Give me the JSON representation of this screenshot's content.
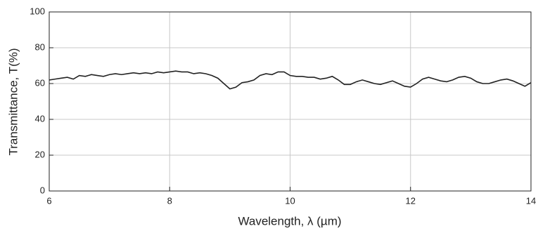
{
  "chart_data": {
    "type": "line",
    "xlabel": "Wavelength, λ (µm)",
    "ylabel": "Transmittance, T(%)",
    "xlim": [
      6,
      14
    ],
    "ylim": [
      0,
      100
    ],
    "xticks": [
      6,
      8,
      10,
      12,
      14
    ],
    "yticks": [
      0,
      20,
      40,
      60,
      80,
      100
    ],
    "grid": true,
    "x": [
      6.0,
      6.1,
      6.2,
      6.3,
      6.4,
      6.5,
      6.6,
      6.7,
      6.8,
      6.9,
      7.0,
      7.1,
      7.2,
      7.3,
      7.4,
      7.5,
      7.6,
      7.7,
      7.8,
      7.9,
      8.0,
      8.1,
      8.2,
      8.3,
      8.4,
      8.5,
      8.6,
      8.7,
      8.8,
      8.9,
      9.0,
      9.1,
      9.2,
      9.3,
      9.4,
      9.5,
      9.6,
      9.7,
      9.8,
      9.9,
      10.0,
      10.1,
      10.2,
      10.3,
      10.4,
      10.5,
      10.6,
      10.7,
      10.8,
      10.9,
      11.0,
      11.1,
      11.2,
      11.3,
      11.4,
      11.5,
      11.6,
      11.7,
      11.8,
      11.9,
      12.0,
      12.1,
      12.2,
      12.3,
      12.4,
      12.5,
      12.6,
      12.7,
      12.8,
      12.9,
      13.0,
      13.1,
      13.2,
      13.3,
      13.4,
      13.5,
      13.6,
      13.7,
      13.8,
      13.9,
      14.0
    ],
    "series": [
      {
        "color": "#222222",
        "values": [
          62,
          62.5,
          63,
          63.5,
          62.5,
          64.5,
          64,
          65,
          64.5,
          64,
          65,
          65.5,
          65,
          65.5,
          66,
          65.5,
          66,
          65.5,
          66.5,
          66,
          66.5,
          67,
          66.5,
          66.5,
          65.5,
          66,
          65.5,
          64.5,
          63,
          60,
          57,
          58,
          60.5,
          61,
          62,
          64.5,
          65.5,
          65,
          66.5,
          66.5,
          64.5,
          64,
          64,
          63.5,
          63.5,
          62.5,
          63,
          64,
          62,
          59.5,
          59.5,
          61,
          62,
          61,
          60,
          59.5,
          60.5,
          61.5,
          60,
          58.5,
          58,
          60,
          62.5,
          63.5,
          62.5,
          61.5,
          61,
          62,
          63.5,
          64,
          63,
          61,
          60,
          60,
          61,
          62,
          62.5,
          61.5,
          60,
          58.5,
          60.5
        ]
      }
    ]
  }
}
